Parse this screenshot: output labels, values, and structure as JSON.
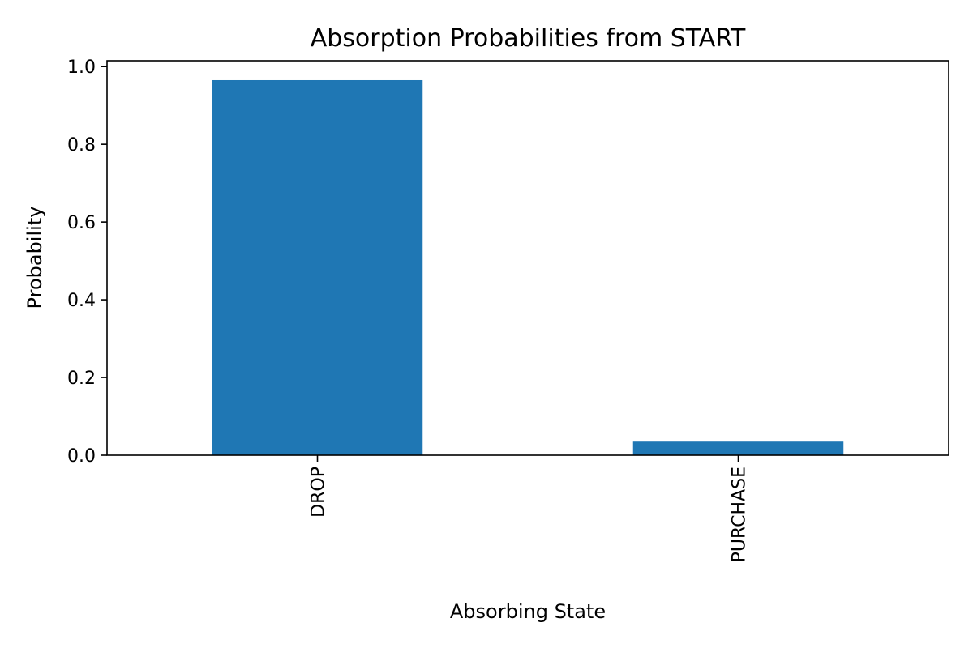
{
  "chart_data": {
    "type": "bar",
    "title": "Absorption Probabilities from START",
    "xlabel": "Absorbing State",
    "ylabel": "Probability",
    "categories": [
      "DROP",
      "PURCHASE"
    ],
    "values": [
      0.965,
      0.035
    ],
    "ylim": [
      0,
      1.015
    ],
    "yticks": [
      0.0,
      0.2,
      0.4,
      0.6,
      0.8,
      1.0
    ],
    "ytick_labels": [
      "0.0",
      "0.2",
      "0.4",
      "0.6",
      "0.8",
      "1.0"
    ],
    "grid": false,
    "legend": "none",
    "bar_color": "#1f77b4"
  }
}
